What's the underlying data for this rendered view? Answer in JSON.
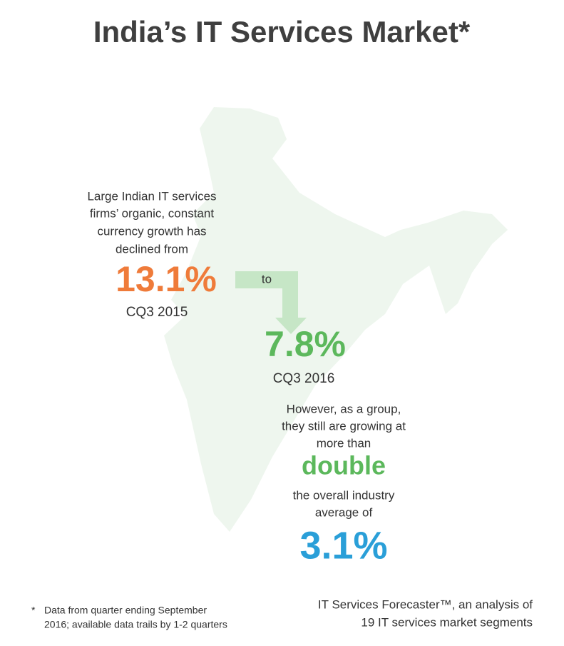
{
  "title": "India’s IT Services Market*",
  "intro": [
    "Large Indian IT services",
    "firms’ organic, constant",
    "currency growth has",
    "declined from"
  ],
  "from_value": "13.1%",
  "from_period": "CQ3 2015",
  "connector": "to",
  "to_value": "7.8%",
  "to_period": "CQ3 2016",
  "however": [
    "However, as a group,",
    "they still are growing at",
    "more than"
  ],
  "emphasis": "double",
  "overall": [
    "the overall industry",
    "average of"
  ],
  "industry_value": "3.1%",
  "footnote": {
    "marker": "*",
    "lines": [
      "Data from quarter ending September",
      "2016; available data trails by  1-2 quarters"
    ]
  },
  "source": [
    "IT Services Forecaster™, an analysis of",
    "19 IT services market segments"
  ]
}
